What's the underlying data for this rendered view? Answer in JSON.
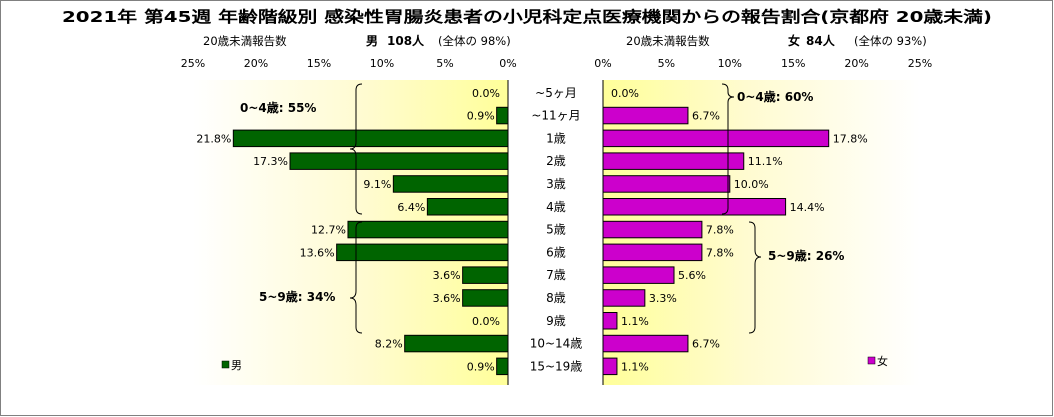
{
  "chart_data": {
    "type": "bar",
    "title": "2021年 第45週 年齢階級別 感染性胃腸炎患者の小児科定点医療機関からの報告割合(京都府 20歳未満)",
    "categories": [
      "~5ヶ月",
      "~11ヶ月",
      "1歳",
      "2歳",
      "3歳",
      "4歳",
      "5歳",
      "6歳",
      "7歳",
      "8歳",
      "9歳",
      "10~14歳",
      "15~19歳"
    ],
    "axis_ticks": [
      "25%",
      "20%",
      "15%",
      "10%",
      "5%",
      "0%"
    ],
    "axis_ticks_right": [
      "0%",
      "5%",
      "10%",
      "15%",
      "20%",
      "25%"
    ],
    "xlim": [
      0,
      25
    ],
    "series": [
      {
        "name": "男",
        "side": "left",
        "color": "#006400",
        "header_count_label": "20歳未満報告数",
        "header_sex": "男",
        "header_total": "108人",
        "header_ratio": "(全体の  98%)",
        "values": [
          0.0,
          0.9,
          21.8,
          17.3,
          9.1,
          6.4,
          12.7,
          13.6,
          3.6,
          3.6,
          0.0,
          8.2,
          0.9
        ],
        "value_labels": [
          "0.0%",
          "0.9%",
          "21.8%",
          "17.3%",
          "9.1%",
          "6.4%",
          "12.7%",
          "13.6%",
          "3.6%",
          "3.6%",
          "0.0%",
          "8.2%",
          "0.9%"
        ],
        "group_labels": [
          "0~4歳: 55%",
          "5~9歳: 34%"
        ],
        "legend": "男"
      },
      {
        "name": "女",
        "side": "right",
        "color": "#CC00CC",
        "header_count_label": "20歳未満報告数",
        "header_sex": "女",
        "header_total": "84人",
        "header_ratio": "(全体の  93%)",
        "values": [
          0.0,
          6.7,
          17.8,
          11.1,
          10.0,
          14.4,
          7.8,
          7.8,
          5.6,
          3.3,
          1.1,
          6.7,
          1.1
        ],
        "value_labels": [
          "0.0%",
          "6.7%",
          "17.8%",
          "11.1%",
          "10.0%",
          "14.4%",
          "7.8%",
          "7.8%",
          "5.6%",
          "3.3%",
          "1.1%",
          "6.7%",
          "1.1%"
        ],
        "group_labels": [
          "0~4歳: 60%",
          "5~9歳: 26%"
        ],
        "legend": "女"
      }
    ],
    "plot_background": "gradient pale yellow"
  }
}
